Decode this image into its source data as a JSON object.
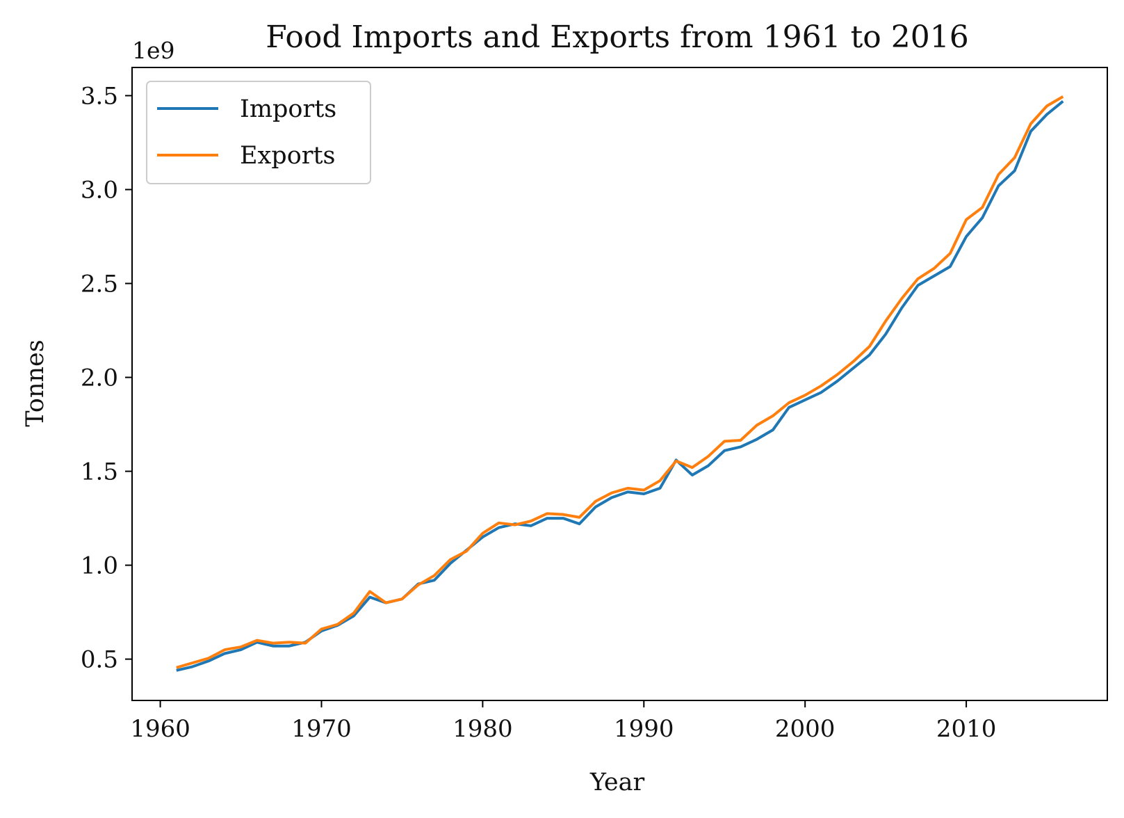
{
  "chart_data": {
    "type": "line",
    "title": "Food Imports and Exports from 1961 to 2016",
    "xlabel": "Year",
    "ylabel": "Tonnes",
    "y_offset_label": "1e9",
    "xlim": [
      1958.25,
      2018.75
    ],
    "ylim": [
      0.28,
      3.65
    ],
    "x_ticks": [
      1960,
      1970,
      1980,
      1990,
      2000,
      2010
    ],
    "x_tick_labels": [
      "1960",
      "1970",
      "1980",
      "1990",
      "2000",
      "2010"
    ],
    "y_ticks": [
      0.5,
      1.0,
      1.5,
      2.0,
      2.5,
      3.0,
      3.5
    ],
    "y_tick_labels": [
      "0.5",
      "1.0",
      "1.5",
      "2.0",
      "2.5",
      "3.0",
      "3.5"
    ],
    "grid": false,
    "legend_position": "top-left",
    "x": [
      1961,
      1962,
      1963,
      1964,
      1965,
      1966,
      1967,
      1968,
      1969,
      1970,
      1971,
      1972,
      1973,
      1974,
      1975,
      1976,
      1977,
      1978,
      1979,
      1980,
      1981,
      1982,
      1983,
      1984,
      1985,
      1986,
      1987,
      1988,
      1989,
      1990,
      1991,
      1992,
      1993,
      1994,
      1995,
      1996,
      1997,
      1998,
      1999,
      2000,
      2001,
      2002,
      2003,
      2004,
      2005,
      2006,
      2007,
      2008,
      2009,
      2010,
      2011,
      2012,
      2013,
      2014,
      2015,
      2016
    ],
    "series": [
      {
        "name": "Imports",
        "color": "#1f77b4",
        "values": [
          0.44,
          0.46,
          0.49,
          0.53,
          0.55,
          0.59,
          0.57,
          0.57,
          0.59,
          0.65,
          0.68,
          0.73,
          0.83,
          0.8,
          0.82,
          0.9,
          0.92,
          1.01,
          1.08,
          1.15,
          1.2,
          1.22,
          1.21,
          1.25,
          1.25,
          1.22,
          1.31,
          1.36,
          1.39,
          1.38,
          1.41,
          1.56,
          1.48,
          1.53,
          1.61,
          1.63,
          1.67,
          1.72,
          1.84,
          1.88,
          1.92,
          1.98,
          2.05,
          2.12,
          2.23,
          2.37,
          2.49,
          2.54,
          2.59,
          2.75,
          2.85,
          3.02,
          3.1,
          3.31,
          3.4,
          3.47
        ]
      },
      {
        "name": "Exports",
        "color": "#ff7f0e",
        "values": [
          0.455,
          0.48,
          0.505,
          0.55,
          0.565,
          0.6,
          0.585,
          0.59,
          0.585,
          0.66,
          0.685,
          0.745,
          0.86,
          0.8,
          0.82,
          0.895,
          0.945,
          1.03,
          1.075,
          1.17,
          1.225,
          1.215,
          1.235,
          1.275,
          1.27,
          1.255,
          1.34,
          1.385,
          1.41,
          1.4,
          1.45,
          1.555,
          1.52,
          1.58,
          1.66,
          1.665,
          1.745,
          1.795,
          1.865,
          1.905,
          1.955,
          2.015,
          2.085,
          2.165,
          2.3,
          2.42,
          2.525,
          2.58,
          2.66,
          2.84,
          2.905,
          3.08,
          3.17,
          3.35,
          3.445,
          3.495
        ]
      }
    ]
  }
}
